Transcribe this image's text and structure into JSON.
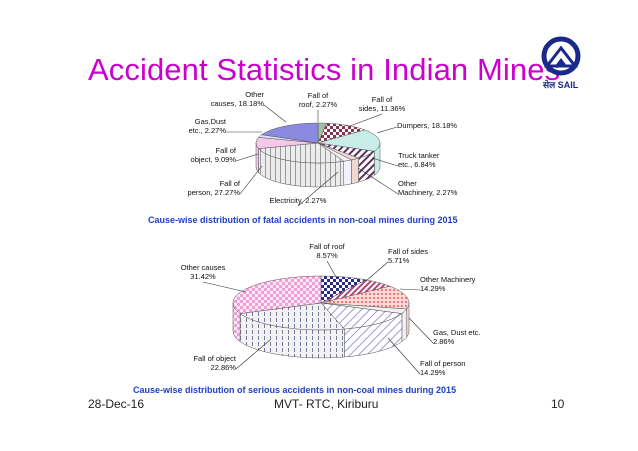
{
  "slide": {
    "title": "Accident Statistics in Indian Mines",
    "logo_text": "सेल SAIL",
    "footer_date": "28-Dec-16",
    "footer_center": "MVT- RTC, Kiriburu",
    "page_number": "10"
  },
  "colors": {
    "title": "#cc00cc",
    "caption": "#1f3fbf",
    "logo": "#1a2a8a"
  },
  "chart_data": [
    {
      "type": "pie",
      "title": "Cause-wise distribution of fatal accidents in non-coal mines during 2015",
      "slices": [
        {
          "label": "Fall of roof, 2.27%",
          "value": 2.27,
          "color": "#9fbfa0",
          "pattern": "solid"
        },
        {
          "label": "Fall of sides, 11.36%",
          "value": 11.36,
          "color": "#8a3050",
          "pattern": "checker"
        },
        {
          "label": "Dumpers, 18.18%",
          "value": 18.18,
          "color": "#c8ece8",
          "pattern": "solid"
        },
        {
          "label": "Truck tanker etc., 6.84%",
          "value": 6.84,
          "color": "#5a3060",
          "pattern": "diag"
        },
        {
          "label": "Other Machinery, 2.27%",
          "value": 2.27,
          "color": "#f0d8d0",
          "pattern": "solid"
        },
        {
          "label": "Electricity, 2.27%",
          "value": 2.27,
          "color": "#f2f2ff",
          "pattern": "solid"
        },
        {
          "label": "Fall of person, 27.27%",
          "value": 27.27,
          "color": "#e8e8e8",
          "pattern": "vlines"
        },
        {
          "label": "Fall of object, 9.09%",
          "value": 9.09,
          "color": "#f4c8e8",
          "pattern": "solid"
        },
        {
          "label": "Gas,Dust etc., 2.27%",
          "value": 2.27,
          "color": "#e0e0ff",
          "pattern": "solid"
        },
        {
          "label": "Other causes, 18.18%",
          "value": 18.18,
          "color": "#8a8ae0",
          "pattern": "solid"
        }
      ]
    },
    {
      "type": "pie",
      "title": "Cause-wise distribution of serious accidents in non-coal mines during 2015",
      "slices": [
        {
          "label": "Fall of roof 8.57%",
          "value": 8.57,
          "color": "#2a2a8a",
          "pattern": "checker"
        },
        {
          "label": "Fall of sides 5.71%",
          "value": 5.71,
          "color": "#b04878",
          "pattern": "diag"
        },
        {
          "label": "Other Machinery 14.29%",
          "value": 14.29,
          "color": "#e06060",
          "pattern": "dots"
        },
        {
          "label": "Gas, Dust etc. 2.86%",
          "value": 2.86,
          "color": "#f0f0f0",
          "pattern": "solid"
        },
        {
          "label": "Fall of person 14.29%",
          "value": 14.29,
          "color": "#d8d8f0",
          "pattern": "diag"
        },
        {
          "label": "Fall of object 22.86%",
          "value": 22.86,
          "color": "#e8e8e8",
          "pattern": "vlines"
        },
        {
          "label": "Other causes 31.42%",
          "value": 31.42,
          "color": "#f0b0e0",
          "pattern": "checker"
        }
      ]
    }
  ]
}
